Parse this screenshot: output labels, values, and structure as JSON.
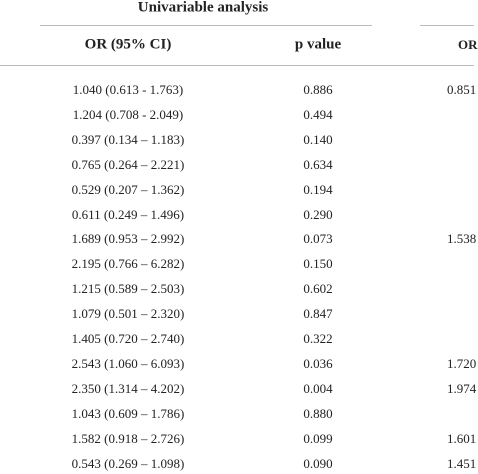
{
  "header": {
    "group_title": "Univariable analysis",
    "columns": [
      "OR (95% CI)",
      "p value"
    ],
    "next_group_column": "OR"
  },
  "rows": [
    {
      "or_ci": "1.040 (0.613 - 1.763)",
      "p": "0.886",
      "next": "0.851"
    },
    {
      "or_ci": "1.204 (0.708 - 2.049)",
      "p": "0.494"
    },
    {
      "or_ci": "0.397 (0.134 – 1.183)",
      "p": "0.140"
    },
    {
      "or_ci": "0.765 (0.264 – 2.221)",
      "p": "0.634"
    },
    {
      "or_ci": "0.529 (0.207 – 1.362)",
      "p": "0.194"
    },
    {
      "or_ci": "0.611 (0.249 – 1.496)",
      "p": "0.290"
    },
    {
      "or_ci": "1.689 (0.953 – 2.992)",
      "p": "0.073",
      "next": "1.538"
    },
    {
      "or_ci": "2.195 (0.766 – 6.282)",
      "p": "0.150"
    },
    {
      "or_ci": "1.215 (0.589 – 2.503)",
      "p": "0.602"
    },
    {
      "or_ci": "1.079 (0.501 – 2.320)",
      "p": "0.847"
    },
    {
      "or_ci": "1.405 (0.720 – 2.740)",
      "p": "0.322"
    },
    {
      "or_ci": "2.543 (1.060 – 6.093)",
      "p": "0.036",
      "next": "1.720"
    },
    {
      "or_ci": "2.350 (1.314 – 4.202)",
      "p": "0.004",
      "next": "1.974"
    },
    {
      "or_ci": "1.043 (0.609 – 1.786)",
      "p": "0.880"
    },
    {
      "or_ci": "1.582 (0.918 – 2.726)",
      "p": "0.099",
      "next": "1.601"
    },
    {
      "or_ci": "0.543 (0.269 – 1.098)",
      "p": "0.090",
      "next": "1.451"
    }
  ]
}
